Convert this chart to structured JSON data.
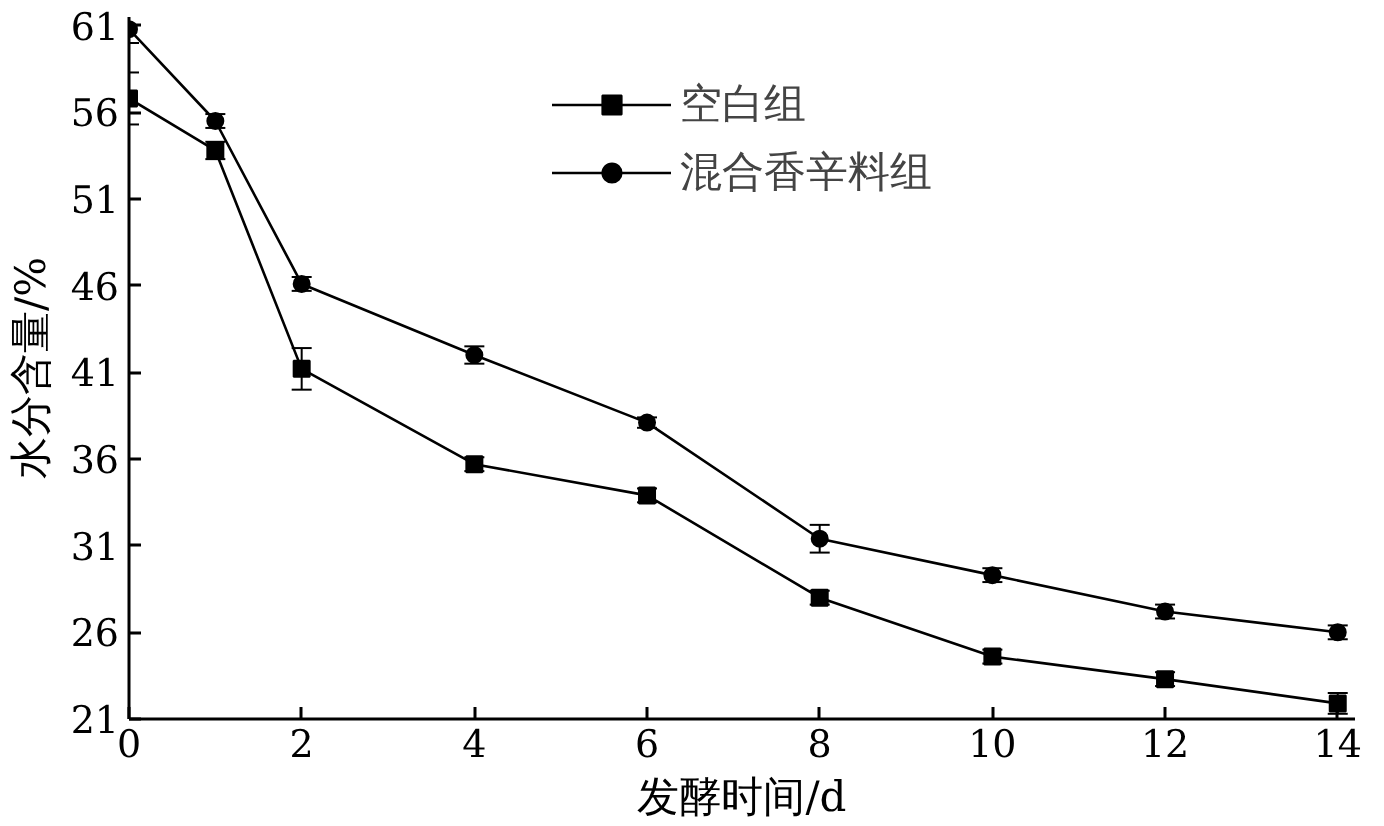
{
  "chart_data": {
    "type": "line",
    "xlabel": "发酵时间/d",
    "ylabel": "水分含量/%",
    "x": [
      0,
      1,
      2,
      4,
      6,
      8,
      10,
      12,
      14
    ],
    "series": [
      {
        "name": "空白组",
        "color": "#000000",
        "marker": "square",
        "values": [
          56.8,
          53.8,
          41.2,
          35.7,
          33.9,
          28.0,
          24.6,
          23.3,
          21.9
        ],
        "errors": [
          1.5,
          0.5,
          1.2,
          0.4,
          0.4,
          0.4,
          0.4,
          0.4,
          0.6
        ]
      },
      {
        "name": "混合香辛料组",
        "color": "#000000",
        "marker": "circle",
        "values": [
          60.8,
          55.5,
          46.1,
          42.0,
          38.1,
          31.4,
          29.3,
          27.2,
          26.0
        ],
        "errors": [
          0.8,
          0.4,
          0.4,
          0.5,
          0.3,
          0.8,
          0.4,
          0.4,
          0.4
        ]
      }
    ],
    "xlim": [
      0,
      14.2
    ],
    "ylim": [
      21,
      61.5
    ],
    "xticks": [
      0,
      2,
      4,
      6,
      8,
      10,
      12,
      14
    ],
    "yticks": [
      21,
      26,
      31,
      36,
      41,
      46,
      51,
      56,
      61
    ],
    "grid": false,
    "legend": "top",
    "line_style": "solid"
  }
}
